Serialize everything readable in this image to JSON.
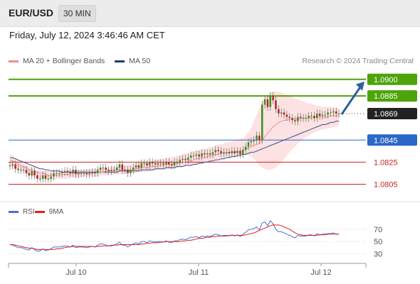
{
  "header": {
    "pair": "EUR/USD",
    "timeframe": "30 MIN",
    "datetime": "Friday, July 12, 2024 3:46:46 AM CET"
  },
  "legend": {
    "items": [
      {
        "label": "MA 20 + Bollinger Bands",
        "color": "#f08c8c"
      },
      {
        "label": "MA 50",
        "color": "#1f3f78"
      }
    ],
    "source": "Research © 2024 Trading Central"
  },
  "chart_data": [
    {
      "type": "line",
      "subtype": "candlestick",
      "ylim": [
        1.0795,
        1.0905
      ],
      "x_ticks": [
        "Jul 10",
        "Jul 11",
        "Jul 12"
      ],
      "resistance": [
        {
          "label": "1.0900",
          "value": 1.09,
          "color": "#4ea30a"
        },
        {
          "label": "1.0885",
          "value": 1.0885,
          "color": "#4ea30a"
        }
      ],
      "current": {
        "label": "1.0869",
        "value": 1.0869
      },
      "pivot": {
        "label": "1.0845",
        "value": 1.0845,
        "color": "#2a68c9"
      },
      "support": [
        {
          "label": "1.0825",
          "value": 1.0825,
          "color": "#cc2222"
        },
        {
          "label": "1.0805",
          "value": 1.0805,
          "color": "#cc2222"
        }
      ],
      "close": [
        1.0822,
        1.0823,
        1.0819,
        1.0818,
        1.0818,
        1.0818,
        1.0815,
        1.0813,
        1.0817,
        1.0813,
        1.081,
        1.081,
        1.0813,
        1.081,
        1.081,
        1.0812,
        1.0815,
        1.0815,
        1.0815,
        1.0816,
        1.0817,
        1.0816,
        1.0815,
        1.0818,
        1.0814,
        1.0815,
        1.0815,
        1.0815,
        1.0814,
        1.0815,
        1.0816,
        1.0815,
        1.0818,
        1.082,
        1.082,
        1.0818,
        1.0817,
        1.0818,
        1.0818,
        1.082,
        1.0823,
        1.0818,
        1.0818,
        1.0815,
        1.0818,
        1.082,
        1.0822,
        1.082,
        1.0824,
        1.0824,
        1.0822,
        1.0825,
        1.0824,
        1.0823,
        1.0824,
        1.0824,
        1.0823,
        1.0825,
        1.0823,
        1.0822,
        1.0825,
        1.0825,
        1.0827,
        1.0828,
        1.0827,
        1.0829,
        1.0831,
        1.0831,
        1.0832,
        1.083,
        1.0833,
        1.0832,
        1.0833,
        1.0832,
        1.0834,
        1.0836,
        1.0835,
        1.0833,
        1.0834,
        1.0834,
        1.0833,
        1.0835,
        1.0833,
        1.0835,
        1.0832,
        1.0836,
        1.0839,
        1.0843,
        1.0844,
        1.0845,
        1.0849,
        1.0845,
        1.0877,
        1.0882,
        1.0875,
        1.0885,
        1.0881,
        1.0873,
        1.0869,
        1.087,
        1.0868,
        1.0866,
        1.0865,
        1.0863,
        1.0862,
        1.0866,
        1.0865,
        1.0865,
        1.0865,
        1.0867,
        1.0867,
        1.0865,
        1.0869,
        1.0867,
        1.0868,
        1.0868,
        1.087,
        1.087,
        1.0871,
        1.0869,
        1.0869
      ],
      "ma20": [
        1.0827,
        1.0826,
        1.0825,
        1.0823,
        1.0822,
        1.0821,
        1.082,
        1.0818,
        1.0818,
        1.0817,
        1.0816,
        1.0815,
        1.0815,
        1.0814,
        1.0813,
        1.0813,
        1.0813,
        1.0813,
        1.0813,
        1.0814,
        1.0814,
        1.0814,
        1.0814,
        1.0815,
        1.0815,
        1.0815,
        1.0815,
        1.0815,
        1.0815,
        1.0815,
        1.0815,
        1.0815,
        1.0816,
        1.0816,
        1.0816,
        1.0817,
        1.0817,
        1.0817,
        1.0817,
        1.0818,
        1.0818,
        1.0818,
        1.0818,
        1.0818,
        1.0818,
        1.0818,
        1.0819,
        1.0819,
        1.082,
        1.082,
        1.082,
        1.0821,
        1.0821,
        1.0821,
        1.0822,
        1.0822,
        1.0822,
        1.0823,
        1.0823,
        1.0823,
        1.0824,
        1.0824,
        1.0824,
        1.0825,
        1.0825,
        1.0826,
        1.0826,
        1.0827,
        1.0828,
        1.0828,
        1.0829,
        1.0829,
        1.083,
        1.0831,
        1.0831,
        1.0832,
        1.0832,
        1.0833,
        1.0833,
        1.0833,
        1.0834,
        1.0834,
        1.0834,
        1.0835,
        1.0835,
        1.0836,
        1.0837,
        1.0838,
        1.0839,
        1.084,
        1.0841,
        1.0842,
        1.0845,
        1.0848,
        1.0851,
        1.0854,
        1.0857,
        1.0859,
        1.0861,
        1.0862,
        1.0863,
        1.0863,
        1.0864,
        1.0864,
        1.0864,
        1.0864,
        1.0865,
        1.0865,
        1.0865,
        1.0865,
        1.0865,
        1.0865,
        1.0866,
        1.0866,
        1.0866,
        1.0866,
        1.0866,
        1.0867,
        1.0867,
        1.0867,
        1.0867
      ],
      "ma50": [
        1.0829,
        1.0829,
        1.0828,
        1.0827,
        1.0826,
        1.0825,
        1.0824,
        1.0823,
        1.0822,
        1.0821,
        1.082,
        1.0819,
        1.0819,
        1.0818,
        1.0818,
        1.0817,
        1.0817,
        1.0817,
        1.0817,
        1.0816,
        1.0816,
        1.0816,
        1.0816,
        1.0816,
        1.0816,
        1.0816,
        1.0816,
        1.0816,
        1.0816,
        1.0816,
        1.0816,
        1.0816,
        1.0816,
        1.0816,
        1.0816,
        1.0816,
        1.0816,
        1.0816,
        1.0816,
        1.0816,
        1.0817,
        1.0817,
        1.0817,
        1.0817,
        1.0817,
        1.0817,
        1.0817,
        1.0817,
        1.0818,
        1.0818,
        1.0818,
        1.0818,
        1.0818,
        1.0819,
        1.0819,
        1.0819,
        1.0819,
        1.082,
        1.082,
        1.082,
        1.082,
        1.0821,
        1.0821,
        1.0821,
        1.0822,
        1.0822,
        1.0822,
        1.0823,
        1.0823,
        1.0824,
        1.0824,
        1.0825,
        1.0825,
        1.0826,
        1.0826,
        1.0827,
        1.0827,
        1.0828,
        1.0828,
        1.0829,
        1.0829,
        1.083,
        1.083,
        1.0831,
        1.0831,
        1.0832,
        1.0832,
        1.0833,
        1.0834,
        1.0834,
        1.0835,
        1.0836,
        1.0837,
        1.0838,
        1.0839,
        1.084,
        1.0841,
        1.0842,
        1.0843,
        1.0844,
        1.0845,
        1.0846,
        1.0847,
        1.0848,
        1.0849,
        1.085,
        1.0851,
        1.0852,
        1.0853,
        1.0854,
        1.0855,
        1.0856,
        1.0857,
        1.0858,
        1.0859,
        1.0859,
        1.086,
        1.0861,
        1.0861,
        1.0862,
        1.0862
      ],
      "bb_upper": [
        1.0832,
        1.0831,
        1.0829,
        1.0827,
        1.0825,
        1.0824,
        1.0822,
        1.0821,
        1.082,
        1.0819,
        1.0818,
        1.0818,
        1.0817,
        1.0817,
        1.0817,
        1.0817,
        1.0817,
        1.0817,
        1.0817,
        1.0817,
        1.0817,
        1.0818,
        1.0818,
        1.0818,
        1.0818,
        1.0818,
        1.0818,
        1.0818,
        1.0819,
        1.0819,
        1.0819,
        1.0819,
        1.0819,
        1.082,
        1.082,
        1.082,
        1.082,
        1.0821,
        1.0821,
        1.0821,
        1.0822,
        1.0822,
        1.0822,
        1.0823,
        1.0823,
        1.0823,
        1.0824,
        1.0824,
        1.0825,
        1.0825,
        1.0825,
        1.0826,
        1.0826,
        1.0827,
        1.0827,
        1.0828,
        1.0828,
        1.0829,
        1.0829,
        1.083,
        1.083,
        1.0831,
        1.0831,
        1.0832,
        1.0833,
        1.0833,
        1.0834,
        1.0835,
        1.0835,
        1.0836,
        1.0837,
        1.0837,
        1.0838,
        1.0839,
        1.0839,
        1.084,
        1.0841,
        1.0841,
        1.0842,
        1.0843,
        1.0843,
        1.0844,
        1.0845,
        1.0845,
        1.0846,
        1.0847,
        1.0849,
        1.0852,
        1.0856,
        1.0862,
        1.0868,
        1.0874,
        1.0879,
        1.0883,
        1.0886,
        1.0888,
        1.0889,
        1.0889,
        1.0889,
        1.0888,
        1.0887,
        1.0886,
        1.0885,
        1.0884,
        1.0883,
        1.0882,
        1.0881,
        1.088,
        1.0879,
        1.0878,
        1.0878,
        1.0877,
        1.0876,
        1.0876,
        1.0875,
        1.0875,
        1.0875,
        1.0875,
        1.0874,
        1.0874,
        1.0874
      ],
      "bb_lower": [
        1.0821,
        1.082,
        1.0819,
        1.0818,
        1.0817,
        1.0816,
        1.0815,
        1.0813,
        1.0812,
        1.0811,
        1.081,
        1.0809,
        1.0809,
        1.0809,
        1.0809,
        1.0809,
        1.0809,
        1.081,
        1.081,
        1.081,
        1.081,
        1.081,
        1.0811,
        1.0811,
        1.0811,
        1.0811,
        1.0811,
        1.0812,
        1.0812,
        1.0812,
        1.0812,
        1.0812,
        1.0812,
        1.0813,
        1.0813,
        1.0813,
        1.0813,
        1.0813,
        1.0814,
        1.0814,
        1.0814,
        1.0814,
        1.0814,
        1.0815,
        1.0815,
        1.0815,
        1.0815,
        1.0816,
        1.0816,
        1.0816,
        1.0816,
        1.0817,
        1.0817,
        1.0817,
        1.0818,
        1.0818,
        1.0818,
        1.0818,
        1.0819,
        1.0819,
        1.082,
        1.082,
        1.082,
        1.0821,
        1.0821,
        1.0822,
        1.0822,
        1.0823,
        1.0823,
        1.0824,
        1.0824,
        1.0825,
        1.0825,
        1.0826,
        1.0826,
        1.0827,
        1.0827,
        1.0828,
        1.0828,
        1.0829,
        1.0829,
        1.083,
        1.083,
        1.0831,
        1.0831,
        1.0832,
        1.0832,
        1.0831,
        1.083,
        1.0828,
        1.0825,
        1.0822,
        1.082,
        1.0819,
        1.0818,
        1.0818,
        1.0819,
        1.082,
        1.0822,
        1.0825,
        1.0828,
        1.0831,
        1.0834,
        1.0837,
        1.0839,
        1.0842,
        1.0844,
        1.0846,
        1.0848,
        1.0849,
        1.0851,
        1.0852,
        1.0853,
        1.0854,
        1.0855,
        1.0855,
        1.0856,
        1.0856,
        1.0857,
        1.0857,
        1.0858
      ]
    },
    {
      "type": "line",
      "series": [
        {
          "name": "RSI",
          "color": "#4a6fd6",
          "values": [
            45,
            44,
            42,
            40,
            40,
            39,
            37,
            36,
            40,
            37,
            34,
            35,
            38,
            35,
            36,
            38,
            41,
            41,
            41,
            42,
            43,
            42,
            41,
            44,
            40,
            41,
            41,
            41,
            40,
            41,
            42,
            41,
            44,
            46,
            46,
            44,
            43,
            44,
            44,
            46,
            49,
            44,
            44,
            41,
            44,
            46,
            48,
            46,
            50,
            50,
            48,
            51,
            50,
            49,
            50,
            50,
            49,
            51,
            49,
            48,
            51,
            51,
            53,
            54,
            53,
            55,
            57,
            57,
            58,
            56,
            59,
            58,
            59,
            58,
            60,
            62,
            61,
            59,
            60,
            60,
            59,
            61,
            59,
            61,
            58,
            62,
            65,
            69,
            70,
            71,
            74,
            69,
            80,
            82,
            76,
            84,
            79,
            70,
            66,
            66,
            64,
            62,
            60,
            58,
            56,
            60,
            59,
            59,
            59,
            61,
            61,
            59,
            63,
            61,
            62,
            62,
            63,
            63,
            64,
            62,
            62
          ]
        },
        {
          "name": "9MA",
          "color": "#e02020",
          "values": [
            45,
            45,
            44,
            43,
            42,
            41,
            40,
            39,
            39,
            38,
            37,
            37,
            37,
            37,
            37,
            37,
            37,
            38,
            38,
            39,
            40,
            41,
            41,
            42,
            42,
            42,
            42,
            42,
            42,
            42,
            42,
            41,
            42,
            42,
            43,
            43,
            43,
            43,
            44,
            44,
            45,
            45,
            45,
            45,
            45,
            45,
            45,
            45,
            46,
            46,
            47,
            47,
            48,
            48,
            48,
            49,
            49,
            50,
            50,
            50,
            50,
            50,
            50,
            51,
            51,
            52,
            52,
            53,
            54,
            55,
            55,
            56,
            57,
            57,
            58,
            58,
            59,
            59,
            59,
            59,
            60,
            60,
            60,
            60,
            60,
            60,
            61,
            62,
            63,
            64,
            66,
            68,
            70,
            72,
            74,
            76,
            77,
            77,
            77,
            76,
            74,
            72,
            70,
            67,
            64,
            62,
            61,
            60,
            60,
            60,
            60,
            60,
            60,
            61,
            61,
            61,
            62,
            62,
            62,
            62,
            62
          ]
        }
      ],
      "ylim": [
        20,
        85
      ],
      "ticks": [
        "70",
        "50",
        "30"
      ],
      "tick_values": [
        70,
        50,
        30
      ]
    }
  ]
}
